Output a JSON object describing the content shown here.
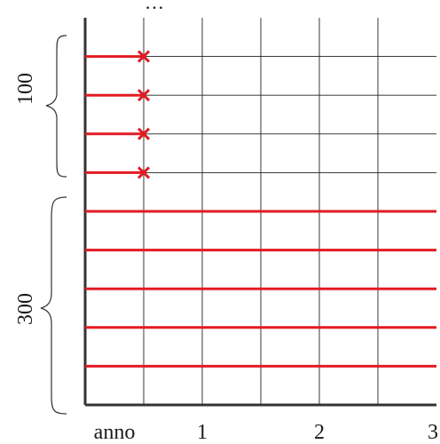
{
  "diagram": {
    "top_ellipsis": "…",
    "x_tick_labels": [
      "anno",
      "1",
      "2",
      "3"
    ],
    "brace_upper_label": "100",
    "brace_lower_label": "300",
    "short_line_count": 4,
    "long_line_count": 5,
    "grid_columns": 6,
    "grid_rows": 10,
    "colors": {
      "lines": "#e31b23",
      "grid": "#222222",
      "text": "#1a1a1a"
    }
  }
}
